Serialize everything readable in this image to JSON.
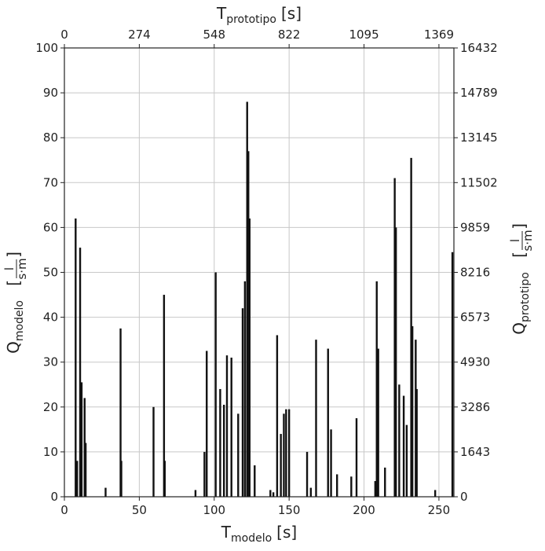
{
  "chart_data": {
    "type": "bar",
    "title": "",
    "x_bottom": {
      "label_main": "T",
      "label_sub": "modelo",
      "label_unit": "[s]",
      "ticks": [
        0,
        50,
        100,
        150,
        200,
        250
      ],
      "range": [
        0,
        260
      ]
    },
    "x_top": {
      "label_main": "T",
      "label_sub": "prototipo",
      "label_unit": "[s]",
      "ticks": [
        "0",
        "274",
        "548",
        "822",
        "1095",
        "1369"
      ],
      "tick_positions_bottom_units": [
        0,
        50,
        100,
        150,
        200,
        250
      ]
    },
    "y_left": {
      "label_main": "Q",
      "label_sub": "modelo",
      "label_unit_num": "l",
      "label_unit_den": "s·m",
      "ticks": [
        0,
        10,
        20,
        30,
        40,
        50,
        60,
        70,
        80,
        90,
        100
      ],
      "range": [
        0,
        100
      ]
    },
    "y_right": {
      "label_main": "Q",
      "label_sub": "prototipo",
      "label_unit_num": "l",
      "label_unit_den": "s·m",
      "ticks": [
        "0",
        "1643",
        "3286",
        "4930",
        "6573",
        "8216",
        "9859",
        "11502",
        "13145",
        "14789",
        "16432"
      ]
    },
    "grid": true,
    "series": [
      {
        "color": "#111111",
        "x": [
          7.5,
          8.5,
          10.5,
          11.5,
          13.5,
          14.2,
          27.5,
          37.5,
          38.0,
          59.5,
          66.5,
          67.0,
          87.5,
          93.5,
          95.0,
          101.0,
          104.0,
          106.5,
          108.5,
          111.5,
          116.0,
          119.0,
          120.5,
          122.0,
          122.8,
          123.6,
          127.0,
          137.5,
          139.5,
          142.0,
          144.5,
          146.5,
          148.0,
          150.0,
          162.0,
          164.5,
          168.0,
          176.0,
          178.0,
          182.0,
          191.5,
          195.0,
          207.5,
          208.5,
          209.5,
          214.0,
          220.5,
          221.3,
          223.5,
          226.5,
          228.5,
          231.5,
          232.3,
          234.5,
          235.2,
          247.5,
          259.0
        ],
        "values": [
          62,
          8,
          55.5,
          25.5,
          22,
          12,
          2,
          37.5,
          8,
          20,
          45,
          8,
          1.5,
          10,
          32.5,
          50,
          24,
          20.5,
          31.5,
          31,
          18.5,
          42,
          48,
          88,
          77,
          62,
          7,
          1.5,
          1,
          36,
          14,
          18.5,
          19.5,
          19.5,
          10,
          2,
          35,
          33,
          15,
          5,
          4.5,
          17.5,
          3.5,
          48,
          33,
          6.5,
          71,
          60,
          25,
          22.5,
          16,
          75.5,
          38,
          35,
          24,
          1.5,
          54.5
        ]
      }
    ]
  }
}
